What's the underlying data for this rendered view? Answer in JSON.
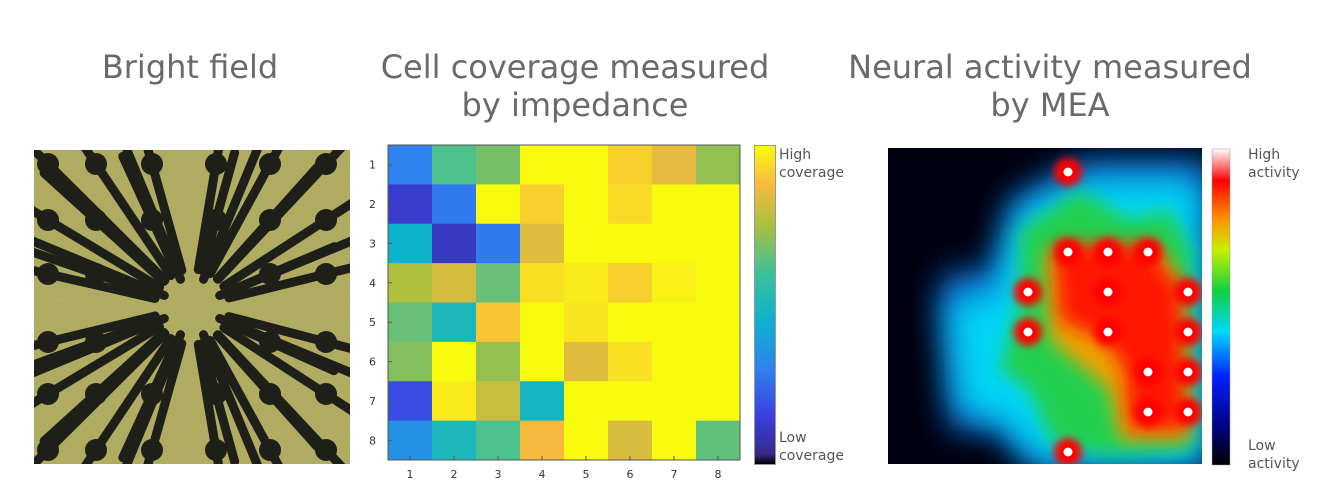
{
  "titles": {
    "bright_field": "Bright field",
    "impedance_line1": "Cell coverage measured",
    "impedance_line2": "by impedance",
    "mea_line1": "Neural activity measured",
    "mea_line2": "by MEA"
  },
  "impedance": {
    "colorbar_high_line1": "High",
    "colorbar_high_line2": "coverage",
    "colorbar_low_line1": "Low",
    "colorbar_low_line2": "coverage",
    "x_ticks": [
      "1",
      "2",
      "3",
      "4",
      "5",
      "6",
      "7",
      "8"
    ],
    "y_ticks": [
      "1",
      "2",
      "3",
      "4",
      "5",
      "6",
      "7",
      "8"
    ]
  },
  "mea": {
    "colorbar_high_line1": "High",
    "colorbar_high_line2": "activity",
    "colorbar_low_line1": "Low",
    "colorbar_low_line2": "activity"
  },
  "chart_data": {
    "type": "heatmap",
    "title": "Cell coverage measured by impedance",
    "xlabel": "",
    "ylabel": "",
    "rows": [
      "1",
      "2",
      "3",
      "4",
      "5",
      "6",
      "7",
      "8"
    ],
    "cols": [
      "1",
      "2",
      "3",
      "4",
      "5",
      "6",
      "7",
      "8"
    ],
    "scale": [
      0,
      1
    ],
    "values": [
      [
        0.3,
        0.62,
        0.68,
        1.0,
        1.0,
        0.92,
        0.85,
        0.72
      ],
      [
        0.12,
        0.28,
        1.0,
        0.92,
        1.0,
        0.94,
        1.0,
        1.0
      ],
      [
        0.45,
        0.1,
        0.28,
        0.84,
        1.0,
        1.0,
        1.0,
        1.0
      ],
      [
        0.76,
        0.82,
        0.66,
        0.95,
        0.97,
        0.92,
        0.98,
        1.0
      ],
      [
        0.66,
        0.5,
        0.9,
        1.0,
        0.96,
        1.0,
        1.0,
        1.0
      ],
      [
        0.7,
        1.0,
        0.72,
        1.0,
        0.84,
        0.95,
        1.0,
        1.0
      ],
      [
        0.18,
        0.97,
        0.8,
        0.48,
        1.0,
        1.0,
        1.0,
        1.0
      ],
      [
        0.35,
        0.5,
        0.62,
        0.88,
        1.0,
        0.83,
        1.0,
        0.65
      ]
    ]
  }
}
